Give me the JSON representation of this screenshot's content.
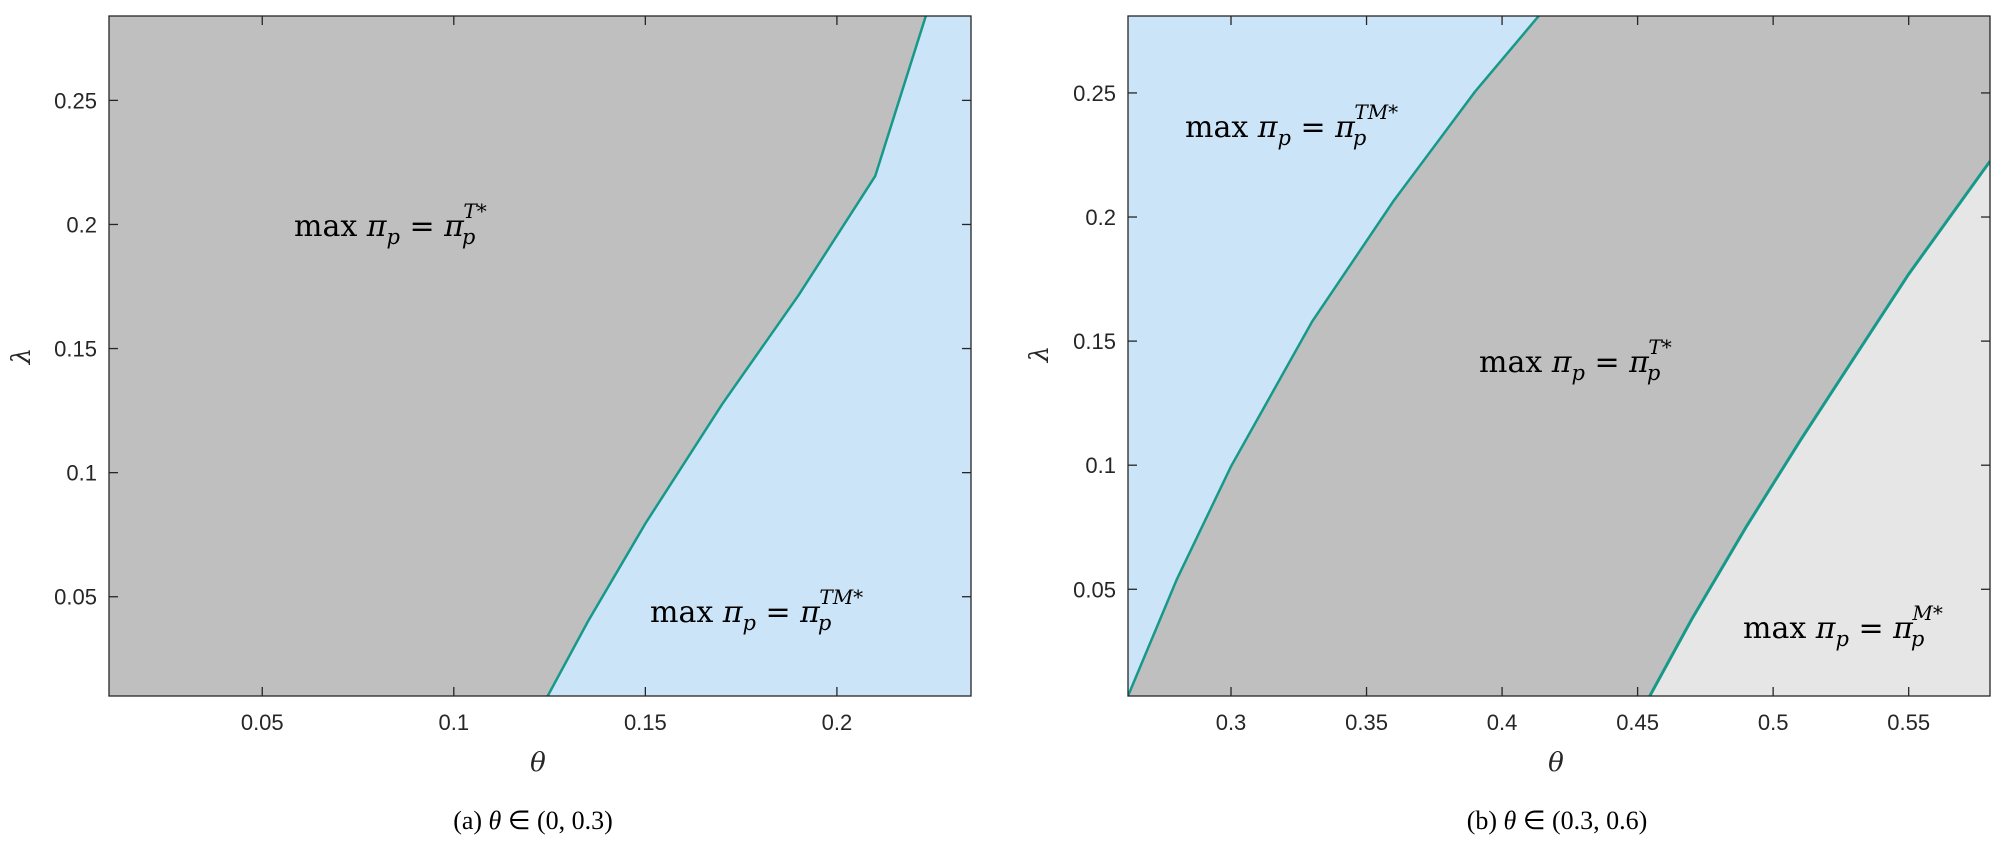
{
  "colors": {
    "gray_region": "#bfbfbf",
    "blue_region": "#cce4f7",
    "lightgray_region": "#e6e6e6",
    "boundary": "#17998a",
    "axis": "#262626"
  },
  "chart_data": [
    {
      "type": "area",
      "panel": "a",
      "caption": {
        "prefix": "(a) ",
        "var": "θ",
        "rest": " ∈ (0, 0.3)"
      },
      "xlabel": "θ",
      "ylabel": "λ",
      "xlim": [
        0.01,
        0.235
      ],
      "ylim": [
        0.01,
        0.284
      ],
      "xticks": [
        0.05,
        0.1,
        0.15,
        0.2
      ],
      "xtick_labels": [
        "0.05",
        "0.1",
        "0.15",
        "0.2"
      ],
      "yticks": [
        0.05,
        0.1,
        0.15,
        0.2,
        0.25
      ],
      "ytick_labels": [
        "0.05",
        "0.1",
        "0.15",
        "0.2",
        "0.25"
      ],
      "grid": false,
      "boundaries": [
        {
          "name": "",
          "x": [
            0.1245,
            0.135,
            0.15,
            0.17,
            0.19,
            0.21,
            0.2232
          ],
          "y": [
            0.01,
            0.04,
            0.0795,
            0.1275,
            0.1715,
            0.2195,
            0.284
          ]
        }
      ],
      "regions": [
        {
          "fill": "gray_region",
          "label": {
            "main": "max ",
            "pi": "π",
            "sub": "p",
            "eq": " = π",
            "sub2": "p",
            "sup": "T*"
          }
        },
        {
          "fill": "blue_region",
          "label": {
            "main": "max ",
            "pi": "π",
            "sub": "p",
            "eq": " = π",
            "sub2": "p",
            "sup": "TM*"
          }
        }
      ]
    },
    {
      "type": "area",
      "panel": "b",
      "caption": {
        "prefix": "(b) ",
        "var": "θ",
        "rest": " ∈ (0.3, 0.6)"
      },
      "xlabel": "θ",
      "ylabel": "λ",
      "xlim": [
        0.262,
        0.58
      ],
      "ylim": [
        0.007,
        0.281
      ],
      "xticks": [
        0.3,
        0.35,
        0.4,
        0.45,
        0.5,
        0.55
      ],
      "xtick_labels": [
        "0.3",
        "0.35",
        "0.4",
        "0.45",
        "0.5",
        "0.55"
      ],
      "yticks": [
        0.05,
        0.1,
        0.15,
        0.2,
        0.25
      ],
      "yticks_labels_note": "",
      "ytick_labels": [
        "0.05",
        "0.1",
        "0.15",
        "0.2",
        "0.25"
      ],
      "grid": false,
      "boundaries": [
        {
          "name": "",
          "x": [
            0.262,
            0.28,
            0.3,
            0.33,
            0.36,
            0.39,
            0.4135
          ],
          "y": [
            0.007,
            0.054,
            0.0995,
            0.158,
            0.2065,
            0.2505,
            0.281
          ]
        },
        {
          "name": "",
          "x": [
            0.4545,
            0.47,
            0.49,
            0.51,
            0.53,
            0.55,
            0.58
          ],
          "y": [
            0.007,
            0.038,
            0.075,
            0.11,
            0.1435,
            0.177,
            0.2225
          ]
        }
      ],
      "regions": [
        {
          "fill": "blue_region",
          "label": {
            "main": "max ",
            "pi": "π",
            "sub": "p",
            "eq": " = π",
            "sub2": "p",
            "sup": "TM*"
          }
        },
        {
          "fill": "gray_region",
          "label": {
            "main": "max ",
            "pi": "π",
            "sub": "p",
            "eq": " = π",
            "sub2": "p",
            "sup": "T*"
          }
        },
        {
          "fill": "lightgray_region",
          "label": {
            "main": "max ",
            "pi": "π",
            "sub": "p",
            "eq": " = π",
            "sub2": "p",
            "sup": "M*"
          }
        }
      ]
    }
  ]
}
